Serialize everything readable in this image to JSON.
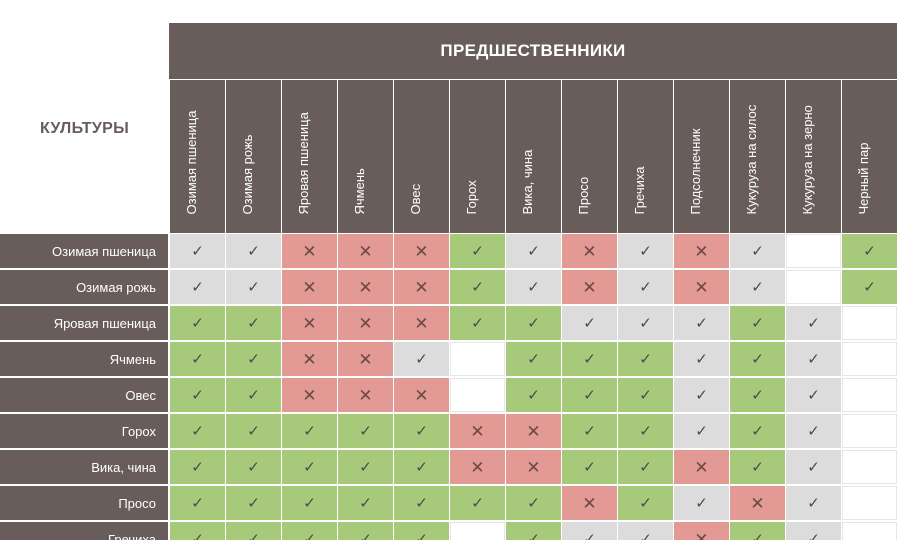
{
  "header": {
    "main_title": "ПРЕДШЕСТВЕННИКИ",
    "side_title": "КУЛЬТУРЫ"
  },
  "columns": [
    "Озимая пшеница",
    "Озимая рожь",
    "Яровая пшеница",
    "Ячмень",
    "Овес",
    "Горох",
    "Вика, чина",
    "Просо",
    "Гречиха",
    "Подсолнечник",
    "Кукуруза на силос",
    "Кукуруза на зерно",
    "Черный пар"
  ],
  "rows": [
    {
      "label": "Озимая пшеница",
      "cells": [
        "n",
        "n",
        "x",
        "x",
        "x",
        "g",
        "n",
        "x",
        "n",
        "x",
        "n",
        "e",
        "g"
      ]
    },
    {
      "label": "Озимая рожь",
      "cells": [
        "n",
        "n",
        "x",
        "x",
        "x",
        "g",
        "n",
        "x",
        "n",
        "x",
        "n",
        "e",
        "g"
      ]
    },
    {
      "label": "Яровая пшеница",
      "cells": [
        "g",
        "g",
        "x",
        "x",
        "x",
        "g",
        "g",
        "n",
        "n",
        "n",
        "g",
        "n",
        "e"
      ]
    },
    {
      "label": "Ячмень",
      "cells": [
        "g",
        "g",
        "x",
        "x",
        "n",
        "e",
        "g",
        "g",
        "g",
        "n",
        "g",
        "n",
        "e"
      ]
    },
    {
      "label": "Овес",
      "cells": [
        "g",
        "g",
        "x",
        "x",
        "x",
        "e",
        "g",
        "g",
        "g",
        "n",
        "g",
        "n",
        "e"
      ]
    },
    {
      "label": "Горох",
      "cells": [
        "g",
        "g",
        "g",
        "g",
        "g",
        "x",
        "x",
        "g",
        "g",
        "n",
        "g",
        "n",
        "e"
      ]
    },
    {
      "label": "Вика, чина",
      "cells": [
        "g",
        "g",
        "g",
        "g",
        "g",
        "x",
        "x",
        "g",
        "g",
        "x",
        "g",
        "n",
        "e"
      ]
    },
    {
      "label": "Просо",
      "cells": [
        "g",
        "g",
        "g",
        "g",
        "g",
        "g",
        "g",
        "x",
        "g",
        "n",
        "x",
        "n",
        "e"
      ]
    },
    {
      "label": "Гречиха",
      "cells": [
        "g",
        "g",
        "g",
        "g",
        "g",
        "e",
        "g",
        "n",
        "n",
        "x",
        "g",
        "n",
        "e"
      ]
    }
  ],
  "legend_symbols": {
    "g": "✓",
    "n": "✓",
    "x": "✕",
    "e": ""
  },
  "colors": {
    "header": "#685d5b",
    "good": "#a7c97a",
    "neutral": "#dcdcdc",
    "bad": "#e39a94",
    "empty": "#ffffff"
  },
  "icons": {
    "g": "check-icon",
    "n": "check-icon",
    "x": "cross-icon",
    "e": ""
  }
}
